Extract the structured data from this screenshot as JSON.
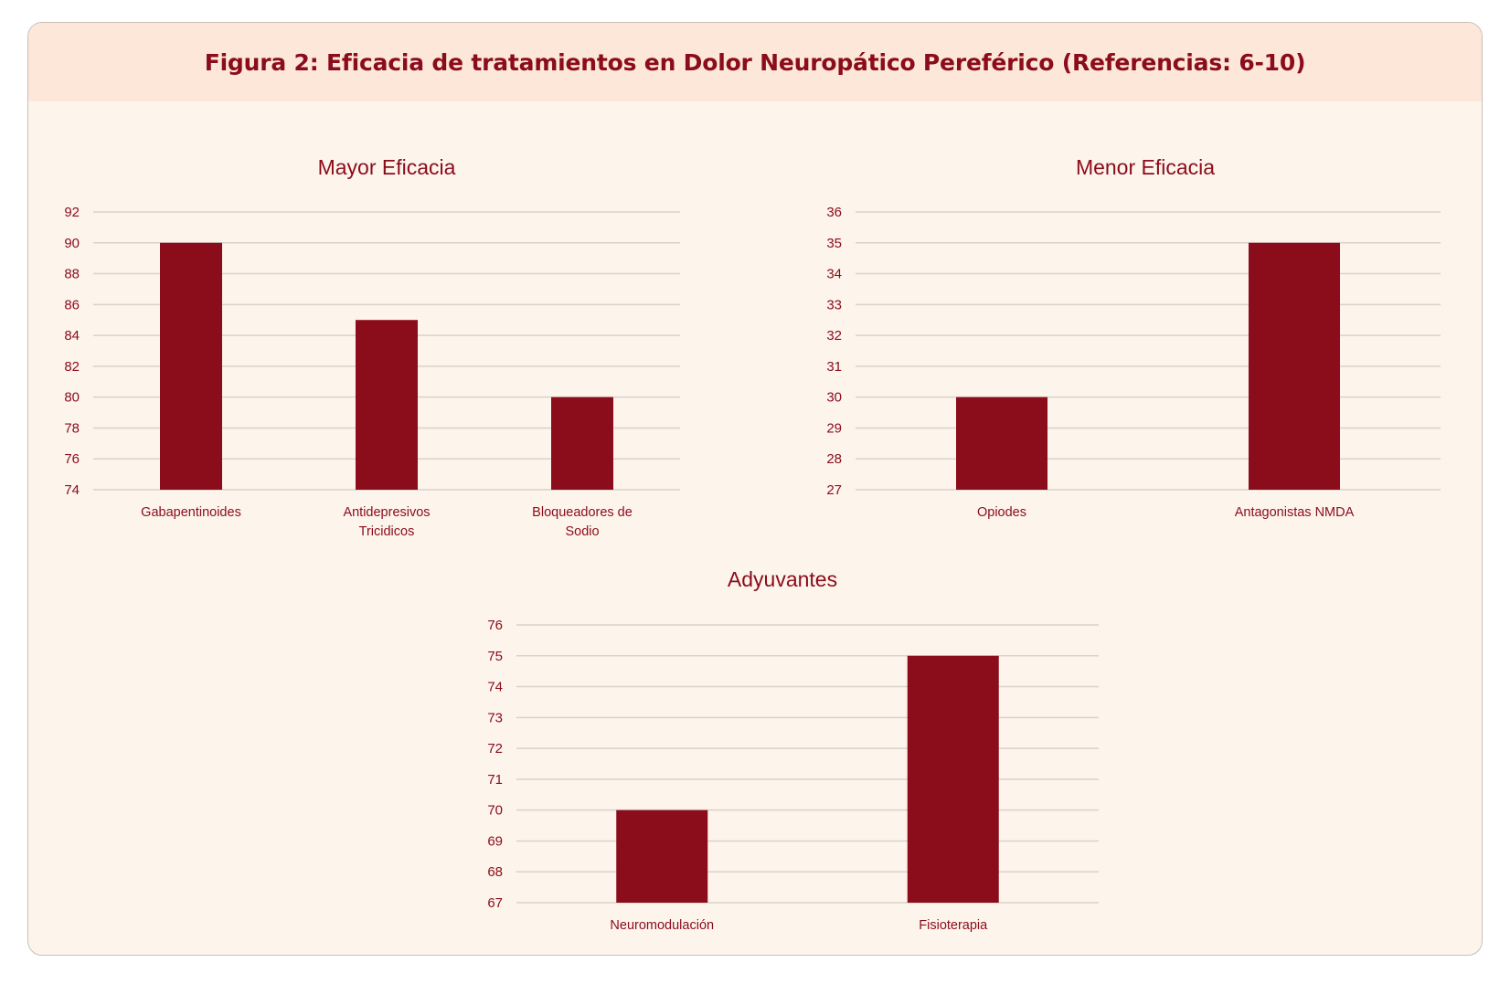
{
  "figure": {
    "title": "Figura 2: Eficacia de tratamientos en Dolor Neuropático Pereférico (Referencias: 6-10)"
  },
  "colors": {
    "bar": "#8b0c1a",
    "text": "#8b0c1a",
    "grid": "#d9d2cc",
    "panel_background": "#fdf4ec",
    "header_background": "#fce7d9"
  },
  "chart_data": [
    {
      "type": "bar",
      "title": "Mayor Eficacia",
      "categories": [
        [
          "Gabapentinoides"
        ],
        [
          "Antidepresivos",
          "Tricidicos"
        ],
        [
          "Bloqueadores de",
          "Sodio"
        ]
      ],
      "values": [
        90,
        85,
        80
      ],
      "ylim": [
        74,
        92
      ],
      "yticks": [
        74,
        76,
        78,
        80,
        82,
        84,
        86,
        88,
        90,
        92
      ],
      "grid": true,
      "xlabel": "",
      "ylabel": ""
    },
    {
      "type": "bar",
      "title": "Menor Eficacia",
      "categories": [
        [
          "Opiodes"
        ],
        [
          "Antagonistas NMDA"
        ]
      ],
      "values": [
        30,
        35
      ],
      "ylim": [
        27,
        36
      ],
      "yticks": [
        27,
        28,
        29,
        30,
        31,
        32,
        33,
        34,
        35,
        36
      ],
      "grid": true,
      "xlabel": "",
      "ylabel": ""
    },
    {
      "type": "bar",
      "title": "Adyuvantes",
      "categories": [
        [
          "Neuromodulación"
        ],
        [
          "Fisioterapia"
        ]
      ],
      "values": [
        70,
        75
      ],
      "ylim": [
        67,
        76
      ],
      "yticks": [
        67,
        68,
        69,
        70,
        71,
        72,
        73,
        74,
        75,
        76
      ],
      "grid": true,
      "xlabel": "",
      "ylabel": ""
    }
  ]
}
